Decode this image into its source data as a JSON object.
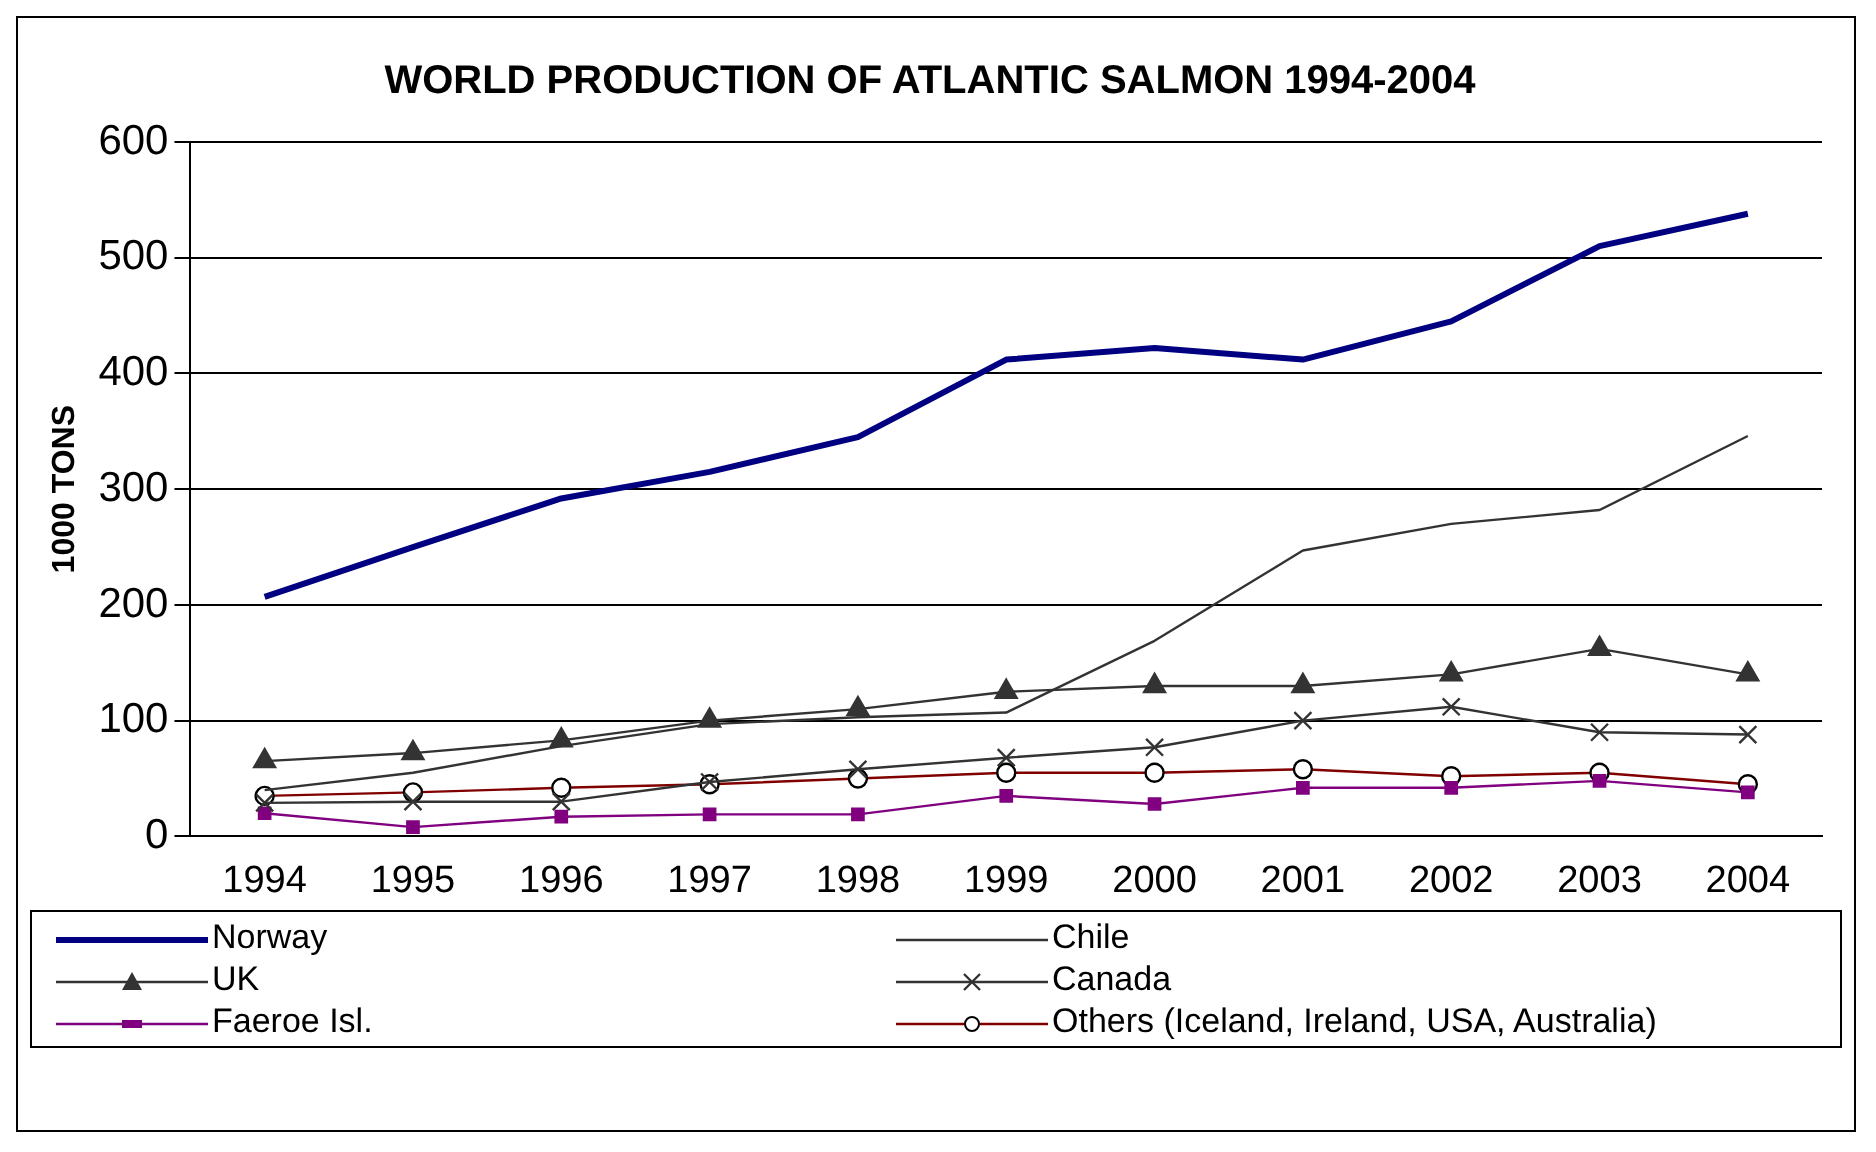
{
  "chart_data": {
    "type": "line",
    "title": "WORLD PRODUCTION OF ATLANTIC SALMON 1994-2004",
    "ylabel": "1000 TONS",
    "categories": [
      "1994",
      "1995",
      "1996",
      "1997",
      "1998",
      "1999",
      "2000",
      "2001",
      "2002",
      "2003",
      "2004"
    ],
    "series": [
      {
        "name": "Norway",
        "color": "#000080",
        "marker": "none",
        "values": [
          207,
          250,
          292,
          315,
          345,
          412,
          422,
          412,
          445,
          510,
          538
        ]
      },
      {
        "name": "Chile",
        "color": "#333333",
        "marker": "none",
        "values": [
          40,
          55,
          78,
          97,
          103,
          107,
          169,
          247,
          270,
          282,
          346
        ]
      },
      {
        "name": "UK",
        "color": "#333333",
        "marker": "triangle",
        "values": [
          65,
          72,
          83,
          100,
          110,
          125,
          130,
          130,
          140,
          162,
          140
        ]
      },
      {
        "name": "Canada",
        "color": "#333333",
        "marker": "cross",
        "values": [
          29,
          30,
          30,
          47,
          58,
          68,
          77,
          100,
          112,
          90,
          88
        ]
      },
      {
        "name": "Faeroe Isl.",
        "color": "#800080",
        "marker": "square",
        "values": [
          20,
          8,
          17,
          19,
          19,
          35,
          28,
          42,
          42,
          48,
          38
        ]
      },
      {
        "name": "Others (Iceland, Ireland, USA, Australia)",
        "color": "#800000",
        "marker": "circle",
        "values": [
          35,
          38,
          42,
          45,
          50,
          55,
          55,
          58,
          52,
          55,
          45
        ]
      }
    ],
    "ylim": [
      0,
      600
    ],
    "yticks": [
      0,
      100,
      200,
      300,
      400,
      500,
      600
    ],
    "grid": "y",
    "legend": "bottom"
  }
}
